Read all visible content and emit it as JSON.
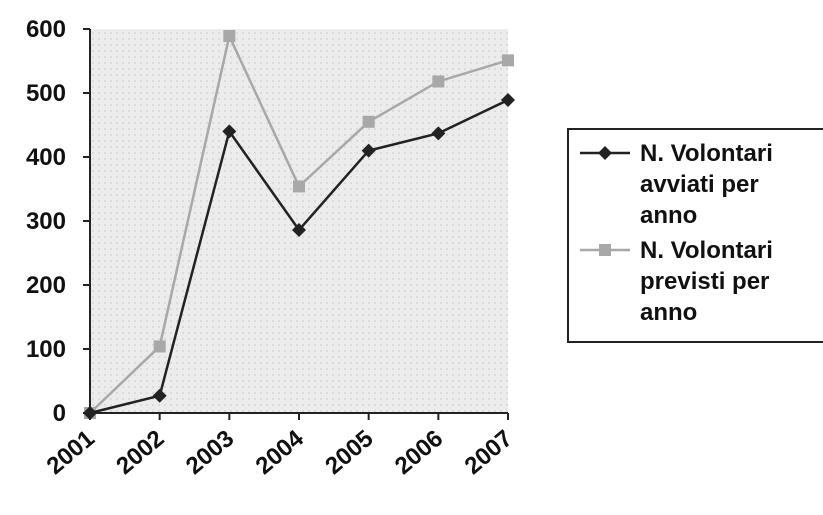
{
  "chart_data": {
    "type": "line",
    "title": "",
    "xlabel": "",
    "ylabel": "",
    "categories": [
      "2001",
      "2002",
      "2003",
      "2004",
      "2005",
      "2006",
      "2007"
    ],
    "ylim": [
      0,
      600
    ],
    "yticks": [
      "0",
      "100",
      "200",
      "300",
      "400",
      "500",
      "600"
    ],
    "grid": false,
    "legend_position": "right",
    "series": [
      {
        "name": "N. Volontari avviati per anno",
        "legend_lines": [
          "N. Volontari",
          "avviati  per",
          "anno"
        ],
        "values": [
          0,
          27,
          440,
          286,
          410,
          437,
          489
        ],
        "color": "#222222",
        "marker": "diamond"
      },
      {
        "name": "N. Volontari previsti per anno",
        "legend_lines": [
          "N. Volontari",
          "previsti per",
          "anno"
        ],
        "values": [
          0,
          104,
          589,
          354,
          455,
          518,
          551
        ],
        "color": "#a8a8a8",
        "marker": "square"
      }
    ]
  }
}
